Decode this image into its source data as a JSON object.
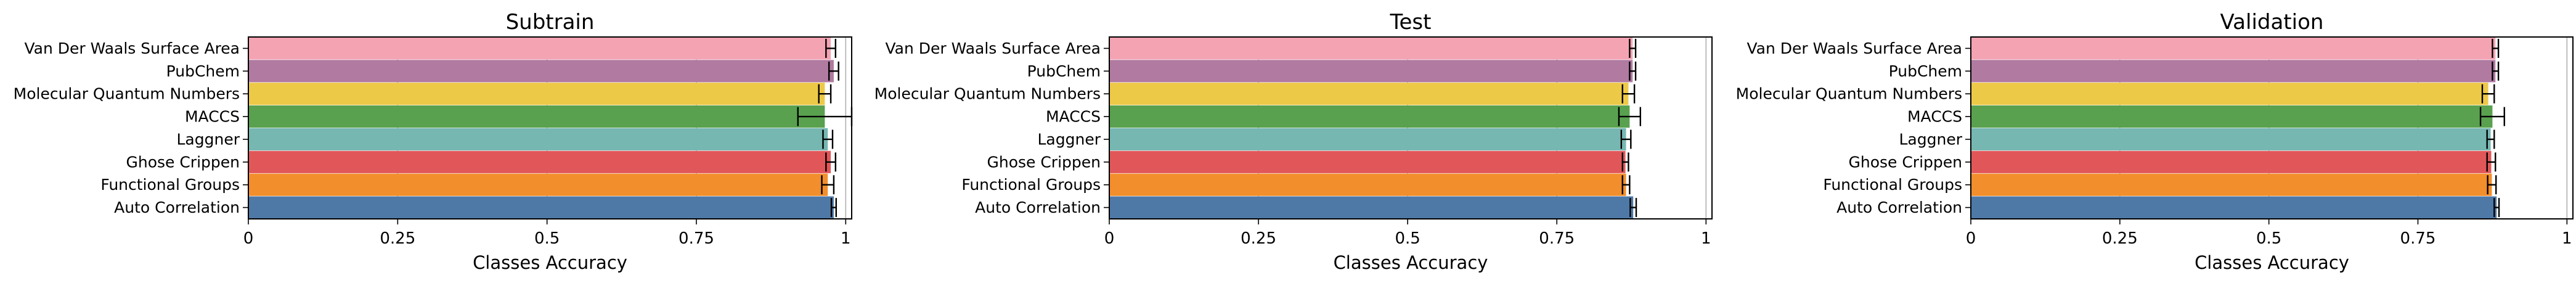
{
  "figure": {
    "error_bar_color": "#000000",
    "grid_color": "#b0b0b0"
  },
  "chart_data": [
    {
      "type": "bar",
      "orientation": "horizontal",
      "title": "Subtrain",
      "xlabel": "Classes Accuracy",
      "xlim": [
        0,
        1.01
      ],
      "xticks": [
        0,
        0.25,
        0.5,
        0.75,
        1
      ],
      "xtick_labels": [
        "0",
        "0.25",
        "0.5",
        "0.75",
        "1"
      ],
      "grid": "x",
      "legend": "none",
      "categories": [
        "Van Der Waals Surface Area",
        "PubChem",
        "Molecular Quantum Numbers",
        "MACCS",
        "Laggner",
        "Ghose Crippen",
        "Functional Groups",
        "Auto Correlation"
      ],
      "values": [
        0.975,
        0.98,
        0.965,
        0.965,
        0.97,
        0.975,
        0.97,
        0.98
      ],
      "errors": [
        0.008,
        0.008,
        0.01,
        0.045,
        0.008,
        0.008,
        0.01,
        0.004
      ],
      "colors": [
        "#f4a3b3",
        "#b07aa1",
        "#edc948",
        "#59a14f",
        "#76b7b2",
        "#e15759",
        "#f28e2b",
        "#4e79a7"
      ]
    },
    {
      "type": "bar",
      "orientation": "horizontal",
      "title": "Test",
      "xlabel": "Classes Accuracy",
      "xlim": [
        0,
        1.01
      ],
      "xticks": [
        0,
        0.25,
        0.5,
        0.75,
        1
      ],
      "xtick_labels": [
        "0",
        "0.25",
        "0.5",
        "0.75",
        "1"
      ],
      "grid": "x",
      "legend": "none",
      "categories": [
        "Van Der Waals Surface Area",
        "PubChem",
        "Molecular Quantum Numbers",
        "MACCS",
        "Laggner",
        "Ghose Crippen",
        "Functional Groups",
        "Auto Correlation"
      ],
      "values": [
        0.877,
        0.877,
        0.87,
        0.872,
        0.866,
        0.865,
        0.866,
        0.878
      ],
      "errors": [
        0.005,
        0.005,
        0.01,
        0.018,
        0.008,
        0.005,
        0.006,
        0.005
      ],
      "colors": [
        "#f4a3b3",
        "#b07aa1",
        "#edc948",
        "#59a14f",
        "#76b7b2",
        "#e15759",
        "#f28e2b",
        "#4e79a7"
      ]
    },
    {
      "type": "bar",
      "orientation": "horizontal",
      "title": "Validation",
      "xlabel": "Classes Accuracy",
      "xlim": [
        0,
        1.01
      ],
      "xticks": [
        0,
        0.25,
        0.5,
        0.75,
        1
      ],
      "xtick_labels": [
        "0",
        "0.25",
        "0.5",
        "0.75",
        "1"
      ],
      "grid": "x",
      "legend": "none",
      "categories": [
        "Van Der Waals Surface Area",
        "PubChem",
        "Molecular Quantum Numbers",
        "MACCS",
        "Laggner",
        "Ghose Crippen",
        "Functional Groups",
        "Auto Correlation"
      ],
      "values": [
        0.88,
        0.88,
        0.868,
        0.875,
        0.872,
        0.873,
        0.874,
        0.882
      ],
      "errors": [
        0.005,
        0.005,
        0.01,
        0.02,
        0.006,
        0.007,
        0.007,
        0.004
      ],
      "colors": [
        "#f4a3b3",
        "#b07aa1",
        "#edc948",
        "#59a14f",
        "#76b7b2",
        "#e15759",
        "#f28e2b",
        "#4e79a7"
      ]
    }
  ]
}
